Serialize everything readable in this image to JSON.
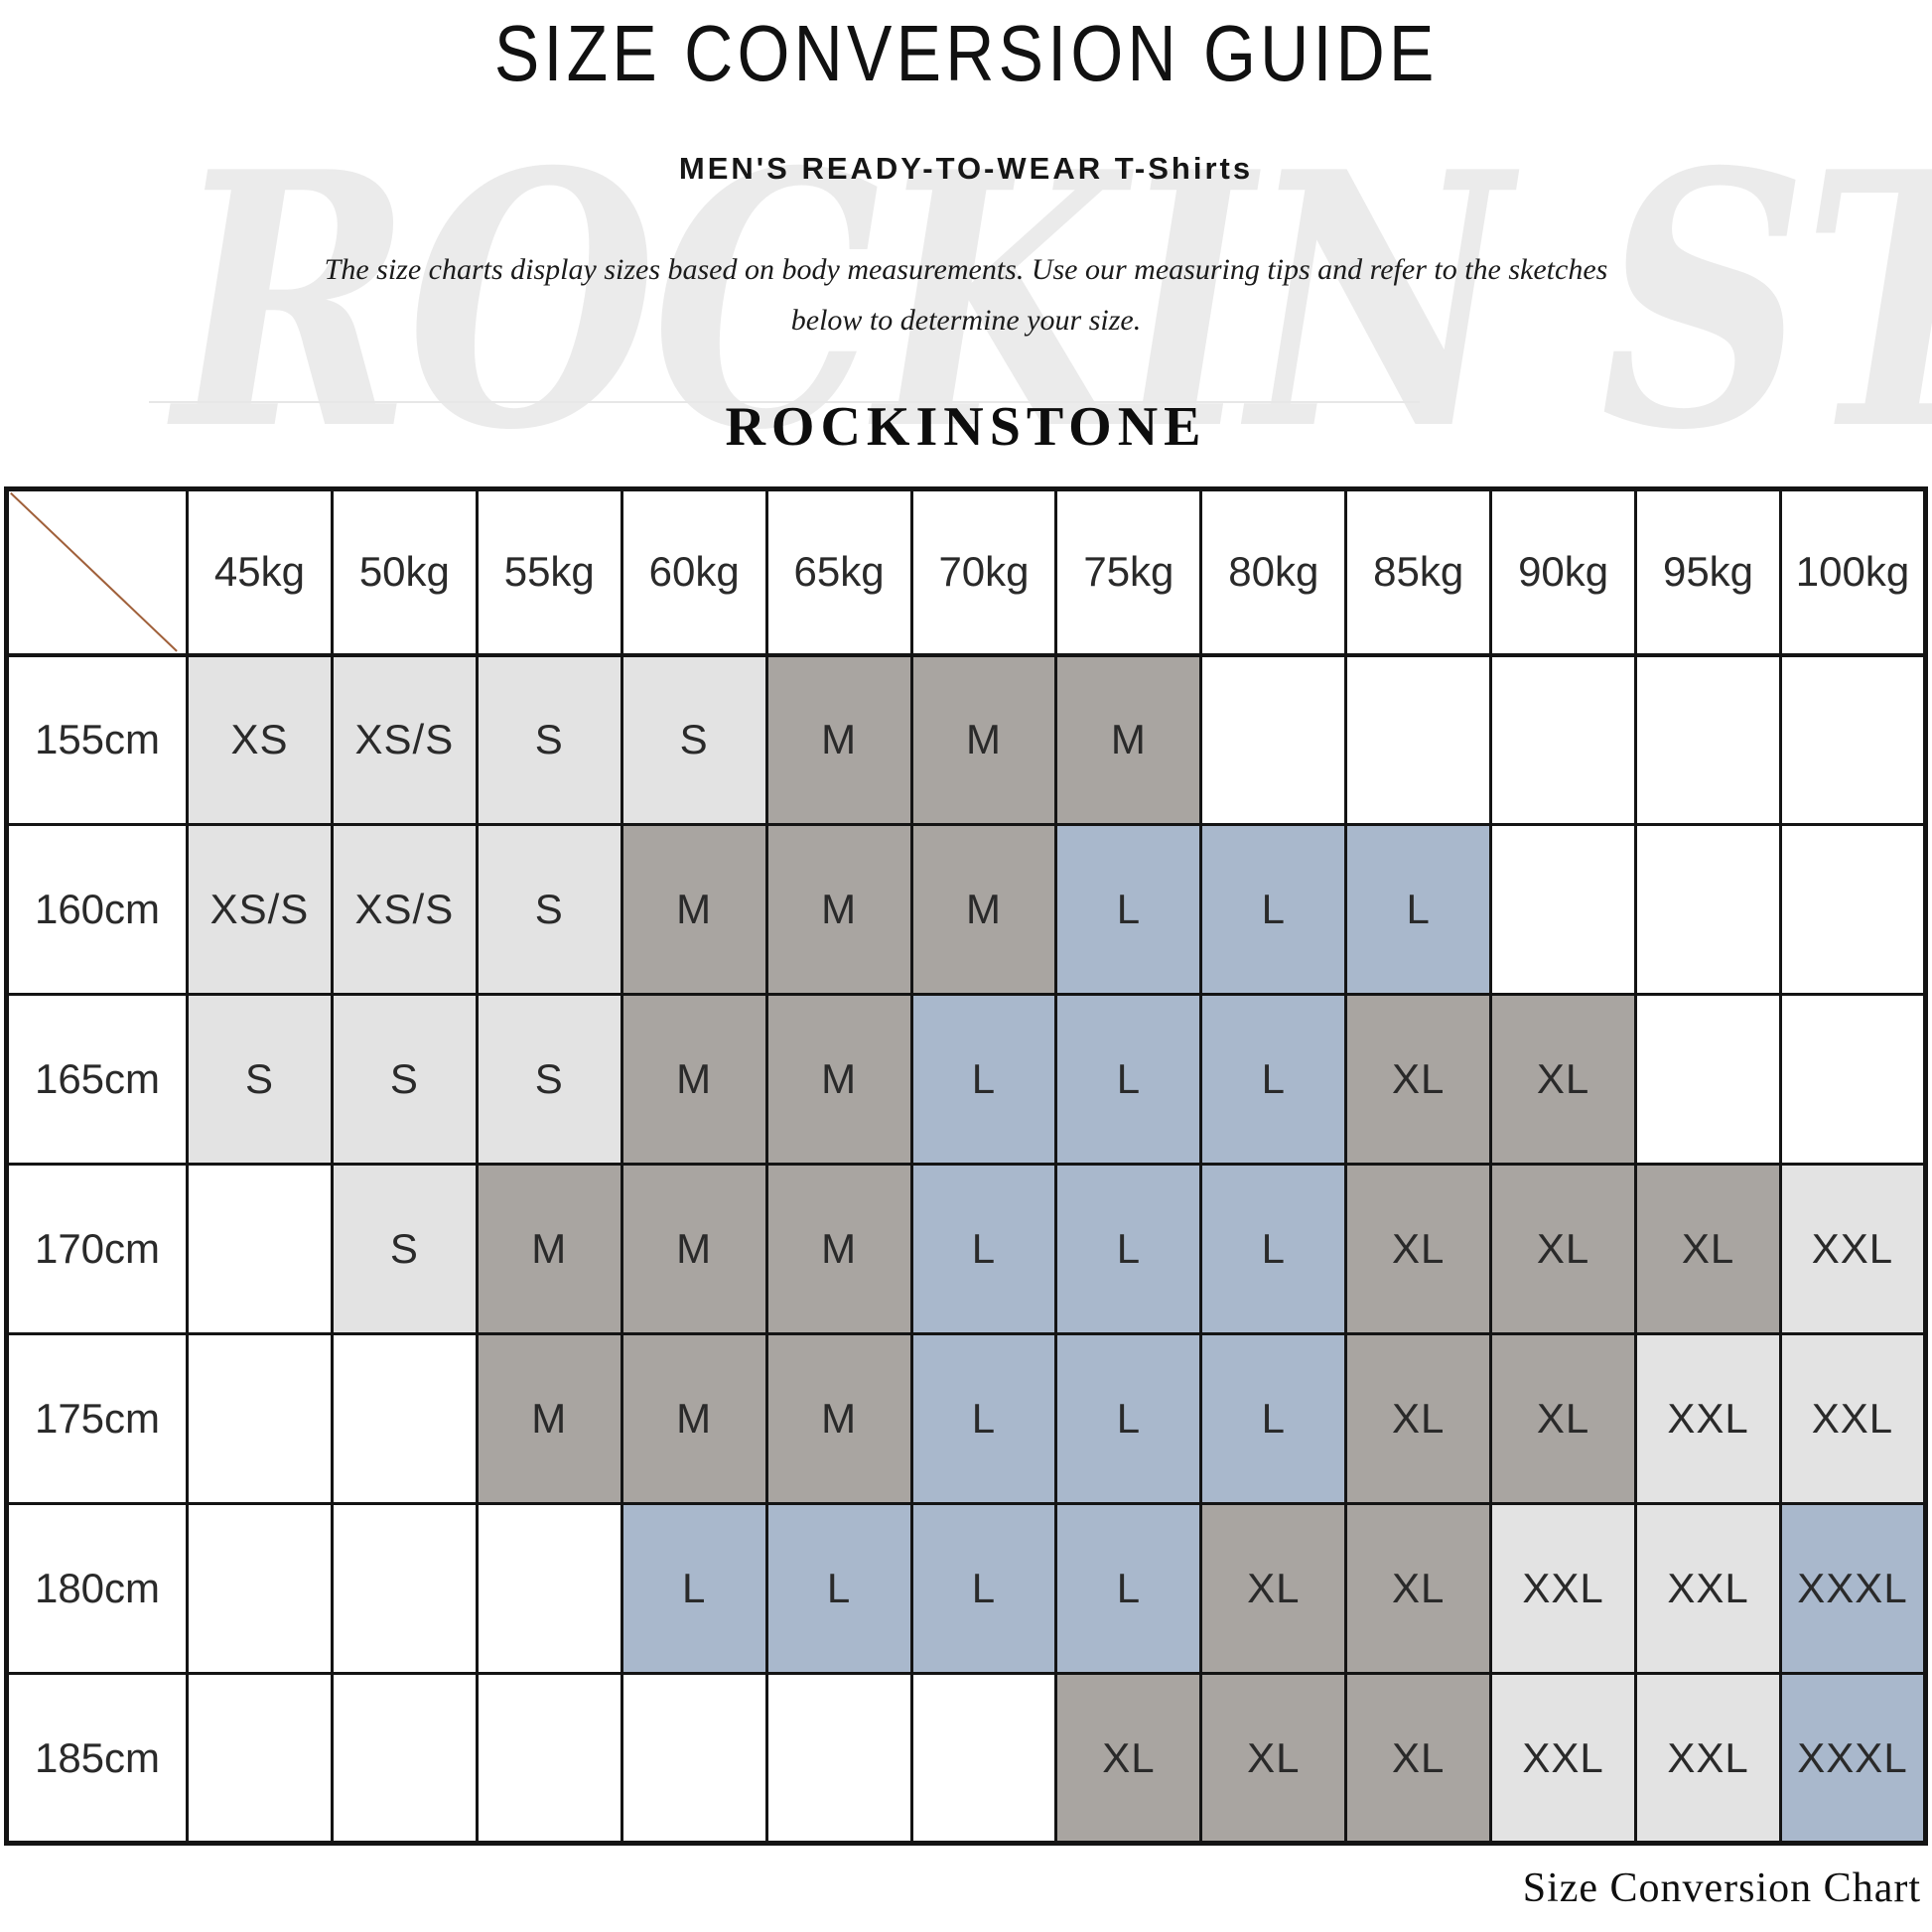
{
  "page": {
    "title": "SIZE CONVERSION GUIDE",
    "subtitle": "MEN'S READY-TO-WEAR T-Shirts",
    "description_line1": "The size charts display sizes based on body measurements.  Use our measuring tips and refer to the sketches",
    "description_line2": "below to determine your size.",
    "brand": "ROCKINSTONE",
    "watermark": "ROCKIN STONE",
    "footer_caption": "Size Conversion Chart"
  },
  "colors": {
    "light": "#e3e3e3",
    "taupe": "#a9a5a1",
    "blue": "#a9b8cc",
    "none": "transparent",
    "border": "#141414",
    "diagonal_line": "#a0603a",
    "watermark_gray": "#ebebeb"
  },
  "chart_data": {
    "type": "table",
    "title": "SIZE CONVERSION GUIDE",
    "column_axis": "weight",
    "row_axis": "height",
    "columns": [
      "45kg",
      "50kg",
      "55kg",
      "60kg",
      "65kg",
      "70kg",
      "75kg",
      "80kg",
      "85kg",
      "90kg",
      "95kg",
      "100kg"
    ],
    "rows": [
      {
        "label": "155cm",
        "cells": [
          [
            "XS",
            "light"
          ],
          [
            "XS/S",
            "light"
          ],
          [
            "S",
            "light"
          ],
          [
            "S",
            "light"
          ],
          [
            "M",
            "taupe"
          ],
          [
            "M",
            "taupe"
          ],
          [
            "M",
            "taupe"
          ],
          [
            "",
            "none"
          ],
          [
            "",
            "none"
          ],
          [
            "",
            "none"
          ],
          [
            "",
            "none"
          ],
          [
            "",
            "none"
          ]
        ]
      },
      {
        "label": "160cm",
        "cells": [
          [
            "XS/S",
            "light"
          ],
          [
            "XS/S",
            "light"
          ],
          [
            "S",
            "light"
          ],
          [
            "M",
            "taupe"
          ],
          [
            "M",
            "taupe"
          ],
          [
            "M",
            "taupe"
          ],
          [
            "L",
            "blue"
          ],
          [
            "L",
            "blue"
          ],
          [
            "L",
            "blue"
          ],
          [
            "",
            "none"
          ],
          [
            "",
            "none"
          ],
          [
            "",
            "none"
          ]
        ]
      },
      {
        "label": "165cm",
        "cells": [
          [
            "S",
            "light"
          ],
          [
            "S",
            "light"
          ],
          [
            "S",
            "light"
          ],
          [
            "M",
            "taupe"
          ],
          [
            "M",
            "taupe"
          ],
          [
            "L",
            "blue"
          ],
          [
            "L",
            "blue"
          ],
          [
            "L",
            "blue"
          ],
          [
            "XL",
            "taupe"
          ],
          [
            "XL",
            "taupe"
          ],
          [
            "",
            "none"
          ],
          [
            "",
            "none"
          ]
        ]
      },
      {
        "label": "170cm",
        "cells": [
          [
            "",
            "none"
          ],
          [
            "S",
            "light"
          ],
          [
            "M",
            "taupe"
          ],
          [
            "M",
            "taupe"
          ],
          [
            "M",
            "taupe"
          ],
          [
            "L",
            "blue"
          ],
          [
            "L",
            "blue"
          ],
          [
            "L",
            "blue"
          ],
          [
            "XL",
            "taupe"
          ],
          [
            "XL",
            "taupe"
          ],
          [
            "XL",
            "taupe"
          ],
          [
            "XXL",
            "light"
          ]
        ]
      },
      {
        "label": "175cm",
        "cells": [
          [
            "",
            "none"
          ],
          [
            "",
            "none"
          ],
          [
            "M",
            "taupe"
          ],
          [
            "M",
            "taupe"
          ],
          [
            "M",
            "taupe"
          ],
          [
            "L",
            "blue"
          ],
          [
            "L",
            "blue"
          ],
          [
            "L",
            "blue"
          ],
          [
            "XL",
            "taupe"
          ],
          [
            "XL",
            "taupe"
          ],
          [
            "XXL",
            "light"
          ],
          [
            "XXL",
            "light"
          ]
        ]
      },
      {
        "label": "180cm",
        "cells": [
          [
            "",
            "none"
          ],
          [
            "",
            "none"
          ],
          [
            "",
            "none"
          ],
          [
            "L",
            "blue"
          ],
          [
            "L",
            "blue"
          ],
          [
            "L",
            "blue"
          ],
          [
            "L",
            "blue"
          ],
          [
            "XL",
            "taupe"
          ],
          [
            "XL",
            "taupe"
          ],
          [
            "XXL",
            "light"
          ],
          [
            "XXL",
            "light"
          ],
          [
            "XXXL",
            "blue"
          ]
        ]
      },
      {
        "label": "185cm",
        "cells": [
          [
            "",
            "none"
          ],
          [
            "",
            "none"
          ],
          [
            "",
            "none"
          ],
          [
            "",
            "none"
          ],
          [
            "",
            "none"
          ],
          [
            "",
            "none"
          ],
          [
            "XL",
            "taupe"
          ],
          [
            "XL",
            "taupe"
          ],
          [
            "XL",
            "taupe"
          ],
          [
            "XXL",
            "light"
          ],
          [
            "XXL",
            "light"
          ],
          [
            "XXXL",
            "blue"
          ]
        ]
      }
    ]
  }
}
